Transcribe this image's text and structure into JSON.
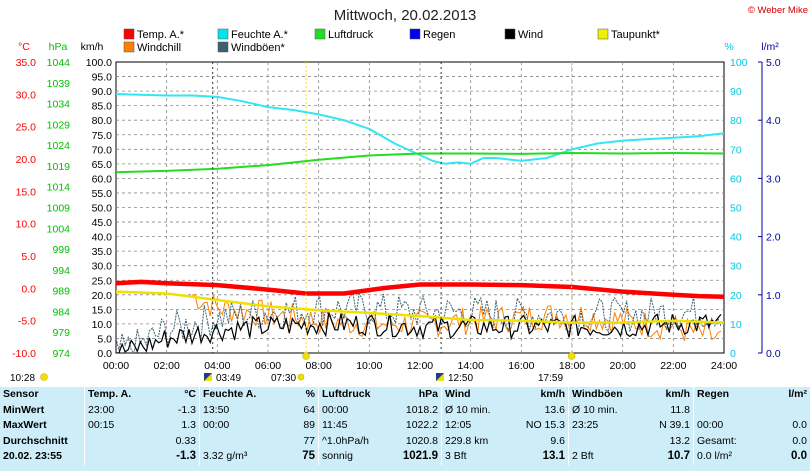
{
  "chart_data": {
    "type": "line",
    "title": "Mittwoch, 20.02.2013",
    "copyright": "© Weber Mike",
    "x_ticks": [
      "00:00",
      "02:00",
      "04:00",
      "06:00",
      "08:00",
      "10:00",
      "12:00",
      "14:00",
      "16:00",
      "18:00",
      "20:00",
      "22:00",
      "24:00"
    ],
    "x_range": [
      0,
      24
    ],
    "axes": {
      "temp": {
        "unit": "°C",
        "color": "#ff0000",
        "min": -10,
        "max": 35,
        "ticks": [
          "35.0",
          "30.0",
          "25.0",
          "20.0",
          "15.0",
          "10.0",
          "5.0",
          "0.0",
          "-5.0",
          "-10.0"
        ]
      },
      "pressure": {
        "unit": "hPa",
        "color": "#00c000",
        "min": 974,
        "max": 1044,
        "ticks": [
          "1044",
          "1039",
          "1034",
          "1029",
          "1024",
          "1019",
          "1014",
          "1009",
          "1004",
          "999",
          "994",
          "989",
          "984",
          "979",
          "974"
        ]
      },
      "wind": {
        "unit": "km/h",
        "color": "#000000",
        "min": 0,
        "max": 100,
        "ticks": [
          "100.0",
          "95.0",
          "90.0",
          "85.0",
          "80.0",
          "75.0",
          "70.0",
          "65.0",
          "60.0",
          "55.0",
          "50.0",
          "45.0",
          "40.0",
          "35.0",
          "30.0",
          "25.0",
          "20.0",
          "15.0",
          "10.0",
          "5.0",
          "0.0"
        ]
      },
      "humidity": {
        "unit": "%",
        "color": "#00c8e6",
        "min": 0,
        "max": 100,
        "ticks": [
          "100",
          "90",
          "80",
          "70",
          "60",
          "50",
          "40",
          "30",
          "20",
          "10",
          "0"
        ]
      },
      "rain": {
        "unit": "l/m²",
        "color": "#0000a0",
        "min": 0,
        "max": 5,
        "ticks": [
          "5.0",
          "4.0",
          "3.0",
          "2.0",
          "1.0",
          "0.0"
        ]
      }
    },
    "legend": [
      {
        "label": "Temp. A.*",
        "color": "#ff0000"
      },
      {
        "label": "Feuchte A.*",
        "color": "#00e5f0"
      },
      {
        "label": "Luftdruck",
        "color": "#22dd22"
      },
      {
        "label": "Regen",
        "color": "#0000ee"
      },
      {
        "label": "Wind",
        "color": "#000000"
      },
      {
        "label": "Taupunkt*",
        "color": "#f0f000"
      },
      {
        "label": "Windchill",
        "color": "#ff8000"
      },
      {
        "label": "Windböen*",
        "color": "#3a6070"
      }
    ],
    "series": [
      {
        "name": "Feuchte A.*",
        "axis": "humidity",
        "color": "#33e5f5",
        "x": [
          0,
          2,
          3,
          4,
          5,
          6,
          7,
          8,
          9,
          10,
          11,
          12,
          12.5,
          13,
          13.5,
          14,
          14.5,
          15,
          16,
          17,
          18,
          19,
          20,
          21,
          22,
          23,
          24
        ],
        "y": [
          89,
          88.5,
          88.5,
          88,
          86.5,
          84.5,
          83.5,
          82,
          80,
          77,
          72,
          68,
          66,
          65,
          65.5,
          65,
          67,
          67,
          66,
          67,
          70,
          72,
          73,
          73.5,
          74,
          74.5,
          75.5
        ]
      },
      {
        "name": "Luftdruck",
        "axis": "pressure",
        "color": "#22dd22",
        "x": [
          0,
          2,
          4,
          6,
          8,
          10,
          12,
          14,
          16,
          18,
          20,
          22,
          24
        ],
        "y": [
          1017.5,
          1017.8,
          1018.3,
          1019.2,
          1020.5,
          1021.5,
          1022.0,
          1022.0,
          1021.9,
          1022.1,
          1022.0,
          1022.1,
          1022.0
        ]
      },
      {
        "name": "Temp. A.*",
        "axis": "temp",
        "color": "#ff0000",
        "x": [
          0,
          1,
          2,
          4,
          6,
          7.5,
          9,
          10.5,
          12,
          14,
          16,
          18,
          20,
          22,
          23,
          24
        ],
        "y": [
          0.8,
          1.0,
          0.8,
          0.5,
          -0.2,
          -0.8,
          -0.8,
          0.0,
          0.6,
          0.6,
          0.5,
          0.2,
          -0.5,
          -1.0,
          -1.2,
          -1.3
        ]
      },
      {
        "name": "Taupunkt*",
        "axis": "temp",
        "color": "#f0e000",
        "x": [
          0,
          2,
          4,
          6,
          8,
          10,
          12,
          14,
          16,
          18,
          20,
          22,
          24
        ],
        "y": [
          -0.5,
          -0.8,
          -1.8,
          -2.8,
          -3.4,
          -3.8,
          -4.3,
          -4.9,
          -5.0,
          -5.3,
          -5.3,
          -5.0,
          -5.3
        ]
      }
    ],
    "noisy_series": [
      {
        "name": "Windchill",
        "axis": "temp",
        "color": "#ff8000",
        "base_x": [
          3,
          4,
          6,
          8,
          10,
          12,
          14,
          16,
          18,
          20,
          22,
          24
        ],
        "base_y": [
          -1,
          -3,
          -4,
          -5,
          -5.5,
          -5.5,
          -5,
          -4.5,
          -4,
          -5,
          -6,
          -8
        ]
      },
      {
        "name": "Windböen*",
        "axis": "wind",
        "color": "#3a6070",
        "base_x": [
          0,
          1,
          2,
          4,
          6,
          8,
          10,
          12,
          14,
          16,
          18,
          20,
          22,
          24
        ],
        "base_y": [
          0,
          3,
          8,
          12,
          14,
          15,
          15,
          14,
          14,
          13,
          13,
          13,
          14,
          14
        ]
      },
      {
        "name": "Wind",
        "axis": "wind",
        "color": "#000000",
        "base_x": [
          0,
          1,
          2,
          4,
          6,
          8,
          10,
          12,
          14,
          16,
          18,
          20,
          22,
          24
        ],
        "base_y": [
          0,
          2,
          5,
          8,
          9,
          10,
          10,
          9,
          9,
          9,
          9,
          9,
          10,
          10
        ]
      }
    ],
    "markers": {
      "sunrise": "07:30",
      "sunset": "17:59",
      "noon": "12:50",
      "moonrise": "03:49",
      "moonset": "10:28"
    }
  },
  "stats": {
    "headers": {
      "sensor": "Sensor",
      "temp": "Temp. A.",
      "temp_unit": "°C",
      "hum": "Feuchte A.",
      "hum_unit": "%",
      "press": "Luftdruck",
      "press_unit": "hPa",
      "wind": "Wind",
      "wind_unit": "km/h",
      "gust": "Windböen",
      "gust_unit": "km/h",
      "rain": "Regen",
      "rain_unit": "l/m²"
    },
    "rows": [
      {
        "label": "MinWert",
        "t_time": "23:00",
        "t_val": "-1.3",
        "h_time": "13:50",
        "h_val": "64",
        "p_time": "00:00",
        "p_val": "1018.2",
        "w_label": "Ø 10 min.",
        "w_val": "13.6",
        "g_label": "Ø 10 min.",
        "g_val": "11.8",
        "r_label": "",
        "r_val": ""
      },
      {
        "label": "MaxWert",
        "t_time": "00:15",
        "t_val": "1.3",
        "h_time": "00:00",
        "h_val": "89",
        "p_time": "11:45",
        "p_val": "1022.2",
        "w_label": "12:05",
        "w_dir": "NO 15.3",
        "w_val": "",
        "g_label": "23:25",
        "g_dir": "N 39.1",
        "g_val": "",
        "r_label": "00:00",
        "r_val": "0.0"
      },
      {
        "label": "Durchschnitt",
        "t_time": "",
        "t_val": "0.33",
        "h_time": "",
        "h_val": "77",
        "p_time": "^1.0hPa/h",
        "p_val": "1020.8",
        "w_label": "229.8 km",
        "w_val": "9.6",
        "g_label": "",
        "g_val": "13.2",
        "r_label": "Gesamt:",
        "r_val": "0.0"
      },
      {
        "label": "20.02. 23:55",
        "t_time": "",
        "t_val": "-1.3",
        "h_time": "3.32 g/m³",
        "h_val": "75",
        "p_time": "sonnig",
        "p_val": "1021.9",
        "w_label": "3 Bft",
        "w_val": "13.1",
        "g_label": "2 Bft",
        "g_val": "10.7",
        "r_label": "0.0 l/m²",
        "r_val": "0.0"
      }
    ]
  }
}
